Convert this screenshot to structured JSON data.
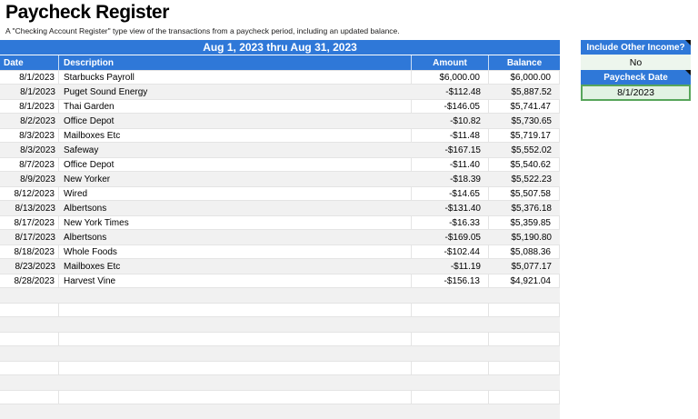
{
  "page": {
    "title": "Paycheck Register",
    "subtitle": "A \"Checking Account Register\" type view of the transactions from a paycheck period, including an updated balance."
  },
  "table": {
    "banner": "Aug 1, 2023 thru Aug 31, 2023",
    "columns": [
      "Date",
      "Description",
      "Amount",
      "Balance"
    ],
    "rows": [
      {
        "date": "8/1/2023",
        "description": "Starbucks Payroll",
        "amount": "$6,000.00",
        "balance": "$6,000.00"
      },
      {
        "date": "8/1/2023",
        "description": "Puget Sound Energy",
        "amount": "-$112.48",
        "balance": "$5,887.52"
      },
      {
        "date": "8/1/2023",
        "description": "Thai Garden",
        "amount": "-$146.05",
        "balance": "$5,741.47"
      },
      {
        "date": "8/2/2023",
        "description": "Office Depot",
        "amount": "-$10.82",
        "balance": "$5,730.65"
      },
      {
        "date": "8/3/2023",
        "description": "Mailboxes Etc",
        "amount": "-$11.48",
        "balance": "$5,719.17"
      },
      {
        "date": "8/3/2023",
        "description": "Safeway",
        "amount": "-$167.15",
        "balance": "$5,552.02"
      },
      {
        "date": "8/7/2023",
        "description": "Office Depot",
        "amount": "-$11.40",
        "balance": "$5,540.62"
      },
      {
        "date": "8/9/2023",
        "description": "New Yorker",
        "amount": "-$18.39",
        "balance": "$5,522.23"
      },
      {
        "date": "8/12/2023",
        "description": "Wired",
        "amount": "-$14.65",
        "balance": "$5,507.58"
      },
      {
        "date": "8/13/2023",
        "description": "Albertsons",
        "amount": "-$131.40",
        "balance": "$5,376.18"
      },
      {
        "date": "8/17/2023",
        "description": "New York Times",
        "amount": "-$16.33",
        "balance": "$5,359.85"
      },
      {
        "date": "8/17/2023",
        "description": "Albertsons",
        "amount": "-$169.05",
        "balance": "$5,190.80"
      },
      {
        "date": "8/18/2023",
        "description": "Whole Foods",
        "amount": "-$102.44",
        "balance": "$5,088.36"
      },
      {
        "date": "8/23/2023",
        "description": "Mailboxes Etc",
        "amount": "-$11.19",
        "balance": "$5,077.17"
      },
      {
        "date": "8/28/2023",
        "description": "Harvest Vine",
        "amount": "-$156.13",
        "balance": "$4,921.04"
      }
    ],
    "empty_row_count": 9
  },
  "sidebar": {
    "include_other_income": {
      "label": "Include Other Income?",
      "value": "No"
    },
    "paycheck_date": {
      "label": "Paycheck Date",
      "value": "8/1/2023"
    }
  },
  "colors": {
    "header_blue": "#2f78d8",
    "stripe_gray": "#f1f1f1",
    "value_green_bg": "#edf6ed",
    "date_green_bg": "#e2f2e3",
    "value_green_border": "#57a55b"
  }
}
